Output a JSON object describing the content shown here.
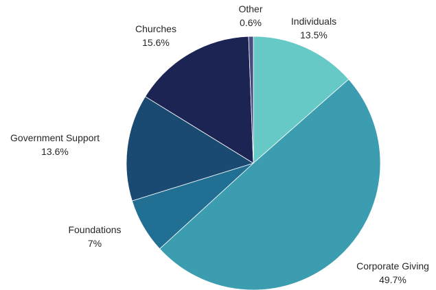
{
  "chart_data": {
    "type": "pie",
    "title": "",
    "slices": [
      {
        "label": "Individuals",
        "value": 13.5,
        "value_label": "13.5%",
        "color": "#67c9c6"
      },
      {
        "label": "Corporate Giving",
        "value": 49.7,
        "value_label": "49.7%",
        "color": "#3d9db0"
      },
      {
        "label": "Foundations",
        "value": 7,
        "value_label": "7%",
        "color": "#226f94"
      },
      {
        "label": "Government Support",
        "value": 13.6,
        "value_label": "13.6%",
        "color": "#1a4a72"
      },
      {
        "label": "Churches",
        "value": 15.6,
        "value_label": "15.6%",
        "color": "#1b2452"
      },
      {
        "label": "Other",
        "value": 0.6,
        "value_label": "0.6%",
        "color": "#4b4b80"
      }
    ],
    "start_angle": "12 o'clock",
    "direction": "clockwise",
    "legend": "none",
    "data_labels": "outside, category name and percentage"
  }
}
